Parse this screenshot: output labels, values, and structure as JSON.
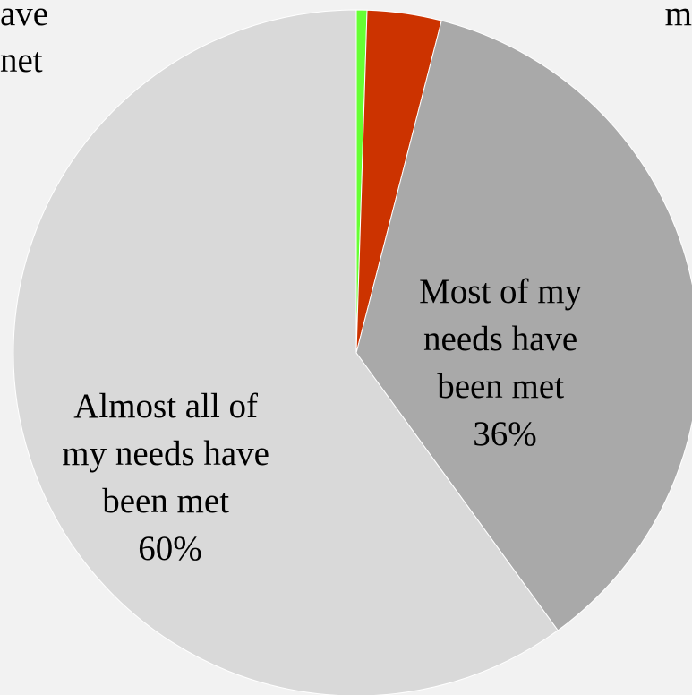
{
  "chart_data": {
    "type": "pie",
    "start_angle_deg": 0,
    "direction": "clockwise",
    "slices": [
      {
        "label_lines": [],
        "value": 0.5,
        "color": "#66ff33"
      },
      {
        "label_lines": [],
        "value": 3.5,
        "color": "#cc3300"
      },
      {
        "label_lines": [
          "Most of my",
          "needs have",
          "been met",
          "36%"
        ],
        "value": 36,
        "color": "#a9a9a9"
      },
      {
        "label_lines": [
          "Almost all of",
          "my needs have",
          "been met",
          "60%"
        ],
        "value": 60,
        "color": "#d9d9d9"
      }
    ],
    "partial_labels": [
      {
        "text": "ave",
        "anchor": "top-left"
      },
      {
        "text": "net",
        "anchor": "top-left"
      },
      {
        "text": "m",
        "anchor": "top-right"
      }
    ],
    "legend": "none",
    "grid": false
  }
}
